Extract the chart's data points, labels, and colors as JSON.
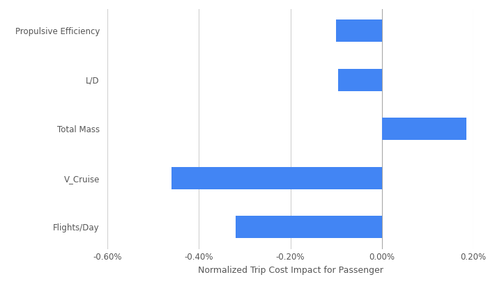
{
  "categories": [
    "Propulsive Efficiency",
    "L/D",
    "Total Mass",
    "V_Cruise",
    "Flights/Day"
  ],
  "values": [
    -0.001,
    -0.00095,
    0.00185,
    -0.0046,
    -0.0032
  ],
  "bar_color": "#4285f4",
  "xlabel": "Normalized Trip Cost Impact for Passenger",
  "xlim": [
    -0.006,
    0.002
  ],
  "xtick_values": [
    -0.006,
    -0.004,
    -0.002,
    0.0,
    0.002
  ],
  "xtick_labels": [
    "-0.60%",
    "-0.40%",
    "-0.20%",
    "0.00%",
    "0.20%"
  ],
  "background_color": "#ffffff",
  "grid_color": "#d0d0d0",
  "bar_height": 0.45,
  "xlabel_fontsize": 9,
  "tick_fontsize": 8.5,
  "label_fontsize": 8.5,
  "label_color": "#555555",
  "tick_color": "#555555"
}
